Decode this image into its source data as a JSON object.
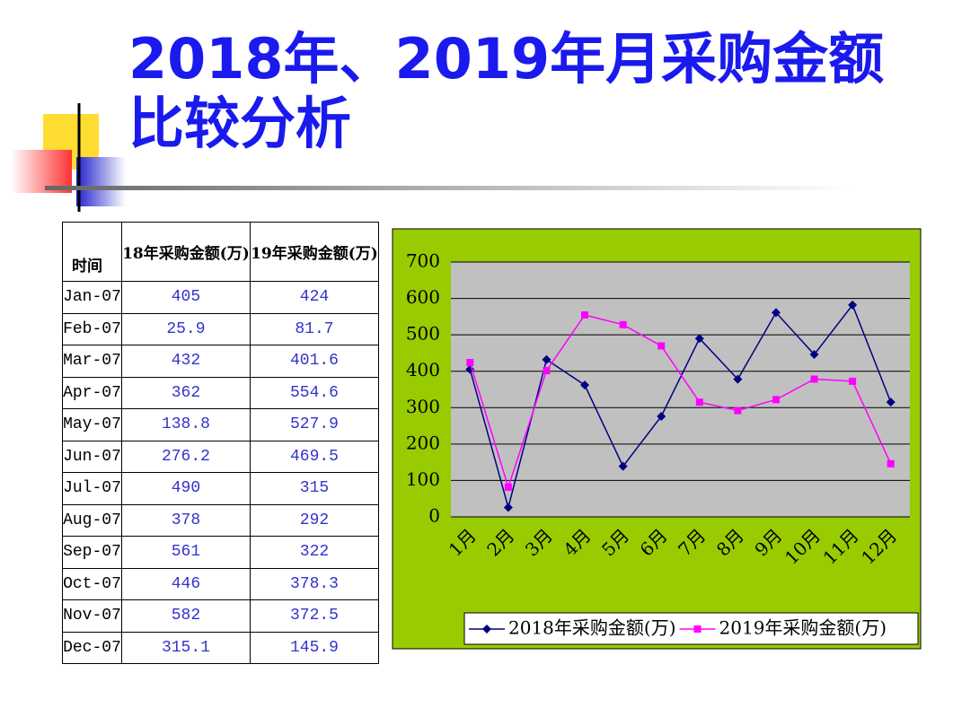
{
  "title": [
    "2018年、2019年月采购金额",
    "比较分析"
  ],
  "table": {
    "header": [
      "时间",
      "18年采购金额(万)",
      "19年采购金额(万)"
    ],
    "rows": [
      [
        "Jan-07",
        405,
        424
      ],
      [
        "Feb-07",
        25.9,
        81.7
      ],
      [
        "Mar-07",
        432,
        401.6
      ],
      [
        "Apr-07",
        362,
        554.6
      ],
      [
        "May-07",
        138.8,
        527.9
      ],
      [
        "Jun-07",
        276.2,
        469.5
      ],
      [
        "Jul-07",
        490,
        315
      ],
      [
        "Aug-07",
        378,
        292
      ],
      [
        "Sep-07",
        561,
        322
      ],
      [
        "Oct-07",
        446,
        378.3
      ],
      [
        "Nov-07",
        582,
        372.5
      ],
      [
        "Dec-07",
        315.1,
        145.9
      ]
    ]
  },
  "chart_data": {
    "type": "line",
    "categories": [
      "1月",
      "2月",
      "3月",
      "4月",
      "5月",
      "6月",
      "7月",
      "8月",
      "9月",
      "10月",
      "11月",
      "12月"
    ],
    "series": [
      {
        "name": "2018年采购金额(万)",
        "color": "#000080",
        "marker": "diamond",
        "values": [
          405,
          25.9,
          432,
          362,
          138.8,
          276.2,
          490,
          378,
          561,
          446,
          582,
          315.1
        ]
      },
      {
        "name": "2019年采购金额(万)",
        "color": "#ff00ff",
        "marker": "square",
        "values": [
          424,
          81.7,
          401.6,
          554.6,
          527.9,
          469.5,
          315,
          292,
          322,
          378.3,
          372.5,
          145.9
        ]
      }
    ],
    "ylim": [
      0,
      700
    ],
    "yticks": [
      0,
      100,
      200,
      300,
      400,
      500,
      600,
      700
    ],
    "grid": true,
    "legend": "bottom"
  }
}
